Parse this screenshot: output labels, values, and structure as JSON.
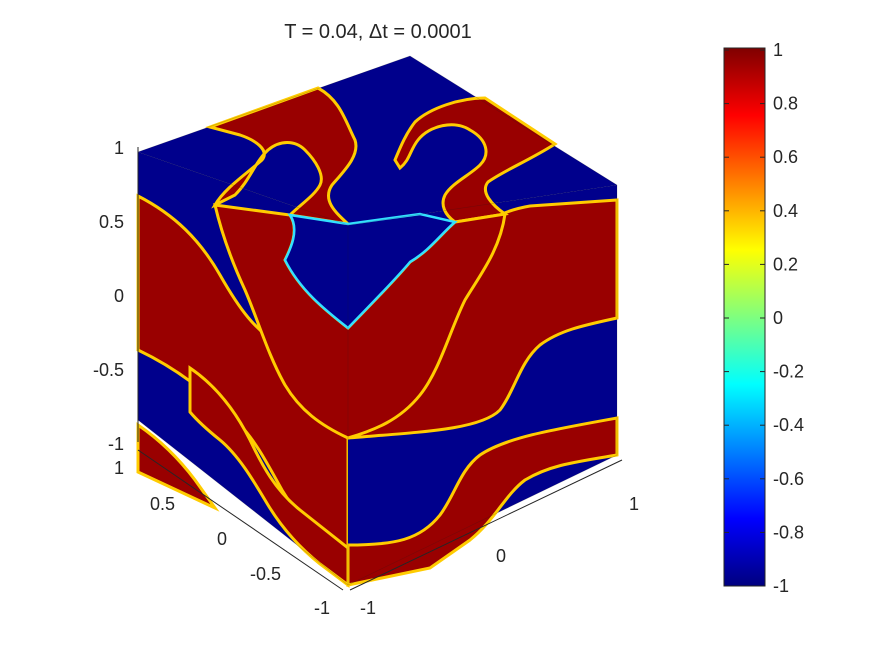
{
  "chart_data": {
    "type": "heatmap",
    "subtype": "3d-cube-surface",
    "title": "T = 0.04,  Δt = 0.0001",
    "colormap": "jet",
    "value_range": [
      -1,
      1
    ],
    "colorbar": {
      "ticks": [
        "1",
        "0.8",
        "0.6",
        "0.4",
        "0.2",
        "0",
        "-0.2",
        "-0.4",
        "-0.6",
        "-0.8",
        "-1"
      ]
    },
    "axes": {
      "z": {
        "range": [
          -1,
          1
        ],
        "tick_labels": [
          "1",
          "0.5",
          "0",
          "-0.5",
          "-1"
        ]
      },
      "y_left": {
        "range": [
          -1,
          1
        ],
        "tick_labels": [
          "1",
          "0.5",
          "0",
          "-0.5",
          "-1"
        ]
      },
      "x_right": {
        "range": [
          -1,
          1
        ],
        "tick_labels": [
          "-1",
          "0",
          "1"
        ]
      }
    },
    "field_regions": {
      "high_value": 1,
      "low_value": -1,
      "interface_colors": [
        "#00ffff",
        "#ffff00"
      ]
    }
  }
}
